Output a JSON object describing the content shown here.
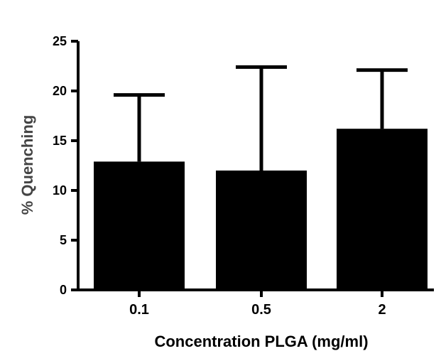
{
  "chart_data": {
    "type": "bar",
    "title": "",
    "xlabel": "Concentration PLGA (mg/ml)",
    "ylabel": "% Quenching",
    "categories": [
      "0.1",
      "0.5",
      "2"
    ],
    "values": [
      12.9,
      12.0,
      16.2
    ],
    "error_upper": [
      19.6,
      22.4,
      22.1
    ],
    "ylim": [
      0,
      25
    ],
    "yticks": [
      "0",
      "5",
      "10",
      "15",
      "20",
      "25"
    ],
    "bar_color": "#000000",
    "grid": false,
    "legend": "none"
  }
}
